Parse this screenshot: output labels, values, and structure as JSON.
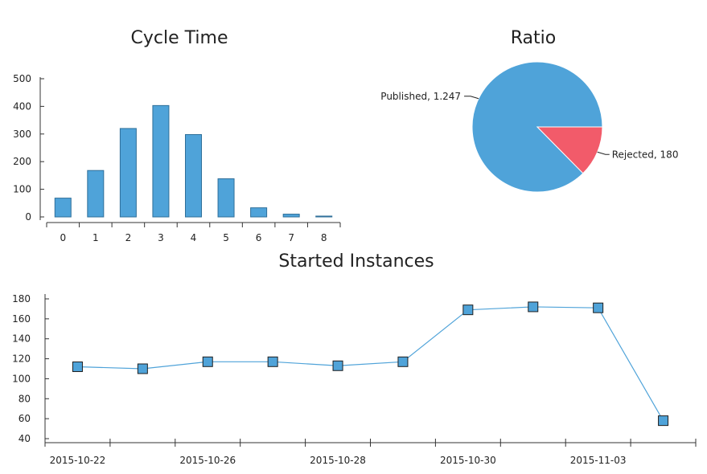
{
  "colors": {
    "bar": "#4fa3d9",
    "line": "#4fa3d9",
    "marker": "#4fa3d9",
    "published": "#4fa3d9",
    "rejected": "#f25b6a",
    "axis": "#333333"
  },
  "chart_data": [
    {
      "type": "bar",
      "title": "Cycle Time",
      "categories": [
        "0",
        "1",
        "2",
        "3",
        "4",
        "5",
        "6",
        "7",
        "8"
      ],
      "values": [
        68,
        168,
        320,
        403,
        298,
        138,
        33,
        10,
        3
      ],
      "ylim": [
        0,
        500
      ],
      "yticks": [
        "0",
        "100",
        "200",
        "300",
        "400",
        "500"
      ],
      "grid": false
    },
    {
      "type": "pie",
      "title": "Ratio",
      "slices": [
        {
          "label": "Published, 1.247",
          "value": 1247
        },
        {
          "label": "Rejected, 180",
          "value": 180
        }
      ]
    },
    {
      "type": "line",
      "title": "Started Instances",
      "values": [
        112,
        110,
        117,
        117,
        113,
        117,
        169,
        172,
        171,
        58
      ],
      "xticklabels": [
        "2015-10-22",
        "2015-10-26",
        "2015-10-28",
        "2015-10-30",
        "2015-11-03"
      ],
      "ylim": [
        40,
        180
      ],
      "yticks": [
        "40",
        "60",
        "80",
        "100",
        "120",
        "140",
        "160",
        "180"
      ],
      "grid": false
    }
  ]
}
